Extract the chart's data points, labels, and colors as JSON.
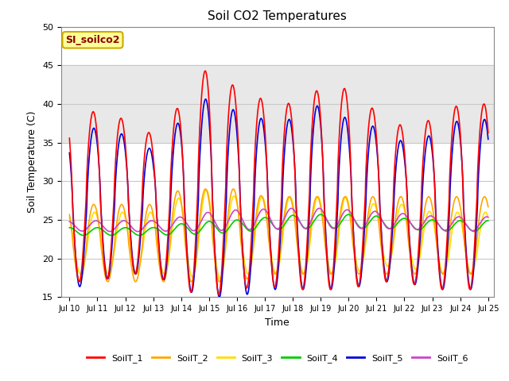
{
  "title": "Soil CO2 Temperatures",
  "xlabel": "Time",
  "ylabel": "Soil Temperature (C)",
  "ylim": [
    15,
    50
  ],
  "xlim_start": 9.7,
  "xlim_end": 25.2,
  "station_label": "SI_soilco2",
  "background_color": "#ffffff",
  "shade_ymin": 35,
  "shade_ymax": 45,
  "shade_color": "#e8e8e8",
  "series": {
    "SoilT_1": {
      "color": "#ff0000",
      "lw": 1.2
    },
    "SoilT_2": {
      "color": "#ffa500",
      "lw": 1.2
    },
    "SoilT_3": {
      "color": "#ffdd00",
      "lw": 1.2
    },
    "SoilT_4": {
      "color": "#00cc00",
      "lw": 1.2
    },
    "SoilT_5": {
      "color": "#0000dd",
      "lw": 1.2
    },
    "SoilT_6": {
      "color": "#cc44cc",
      "lw": 1.2
    }
  },
  "yticks": [
    15,
    20,
    25,
    30,
    35,
    40,
    45,
    50
  ],
  "xtick_labels": [
    "Jul 10",
    "Jul 11",
    "Jul 12",
    "Jul 13",
    "Jul 14",
    "Jul 15",
    "Jul 16",
    "Jul 17",
    "Jul 18",
    "Jul 19",
    "Jul 20",
    "Jul 21",
    "Jul 22",
    "Jul 23",
    "Jul 24",
    "Jul 25"
  ],
  "xtick_positions": [
    10,
    11,
    12,
    13,
    14,
    15,
    16,
    17,
    18,
    19,
    20,
    21,
    22,
    23,
    24,
    25
  ],
  "legend_series": [
    "SoilT_1",
    "SoilT_2",
    "SoilT_3",
    "SoilT_4",
    "SoilT_5",
    "SoilT_6"
  ],
  "legend_colors": [
    "#ff0000",
    "#ffa500",
    "#ffdd00",
    "#00cc00",
    "#0000dd",
    "#cc44cc"
  ]
}
